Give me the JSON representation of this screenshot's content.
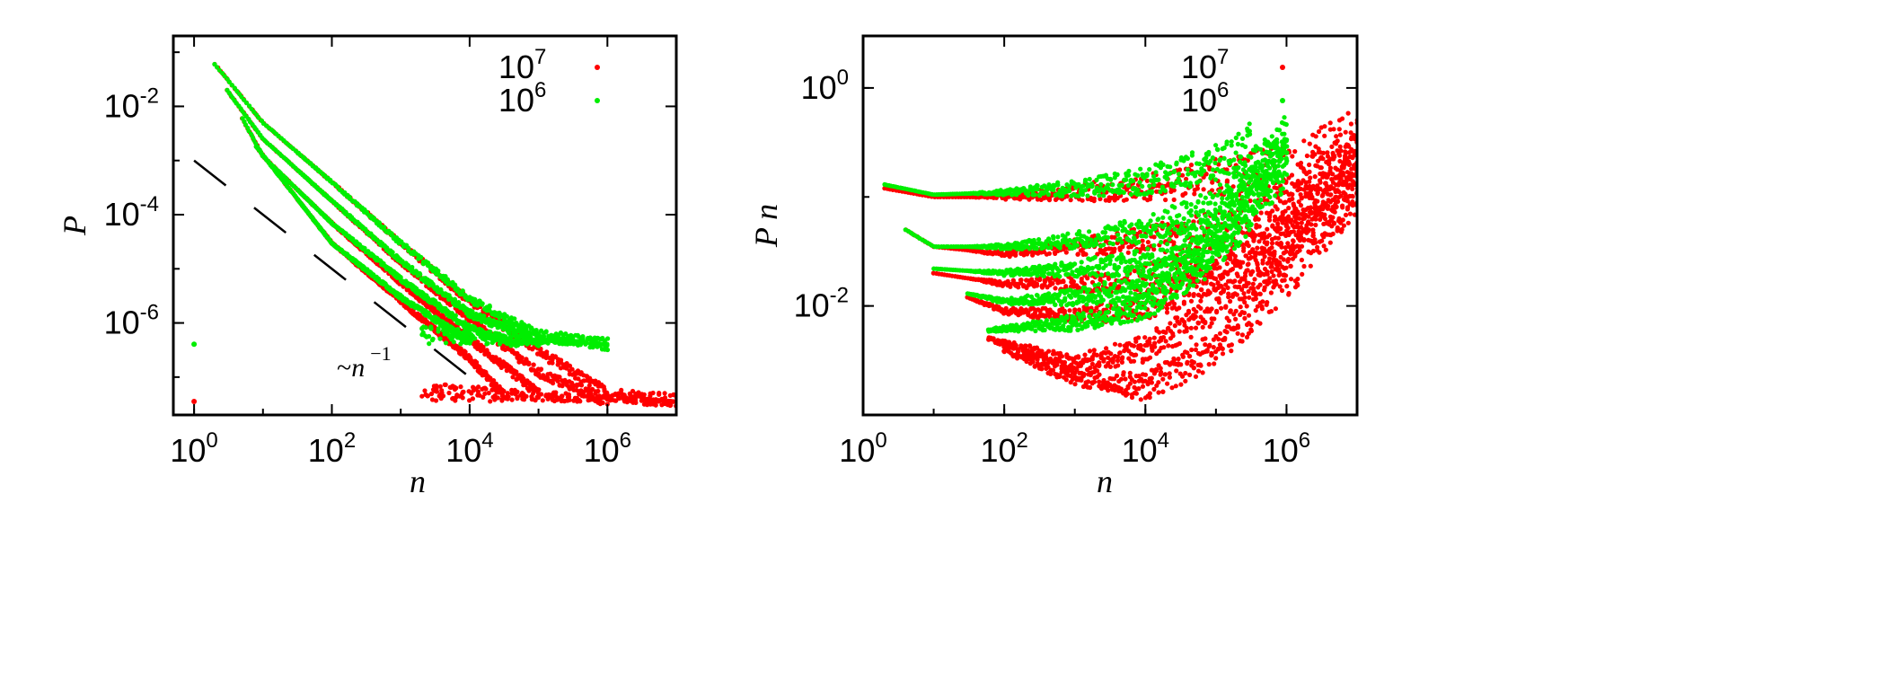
{
  "chart_data": [
    {
      "type": "scatter",
      "panel": "left",
      "title": "",
      "xlabel": "n",
      "ylabel": "P",
      "xscale": "log",
      "yscale": "log",
      "xlim": [
        0.5,
        10000000
      ],
      "ylim": [
        2e-08,
        0.2
      ],
      "xticks": [
        {
          "base": "10",
          "exp": "0",
          "value": 1
        },
        {
          "base": "10",
          "exp": "2",
          "value": 100
        },
        {
          "base": "10",
          "exp": "4",
          "value": 10000
        },
        {
          "base": "10",
          "exp": "6",
          "value": 1000000
        }
      ],
      "yticks": [
        {
          "base": "10",
          "exp": "-2",
          "value": 0.01
        },
        {
          "base": "10",
          "exp": "-4",
          "value": 0.0001
        },
        {
          "base": "10",
          "exp": "-6",
          "value": 1e-06
        }
      ],
      "legend_position": "top-right",
      "series": [
        {
          "name": "10^7",
          "label_base": "10",
          "label_exp": "7",
          "color": "#ff0000",
          "n_max": 10000000,
          "floor": 3.55e-08,
          "isolated_points": [
            [
              1,
              3.55e-08
            ]
          ],
          "curves": [
            {
              "x": [
                2,
                10,
                100,
                1000,
                10000,
                100000,
                1000000,
                10000000
              ],
              "y": [
                0.06,
                0.005,
                0.0004,
                3e-05,
                2.5e-06,
                3e-07,
                5e-08,
                3.55e-08
              ]
            },
            {
              "x": [
                3,
                10,
                100,
                1000,
                10000,
                100000,
                1000000
              ],
              "y": [
                0.02,
                0.0025,
                0.00018,
                1.3e-05,
                1.2e-06,
                1.2e-07,
                3.6e-08
              ]
            },
            {
              "x": [
                5,
                10,
                100,
                1000,
                10000,
                100000
              ],
              "y": [
                0.006,
                0.0012,
                7e-05,
                5.5e-06,
                5e-07,
                5e-08
              ]
            },
            {
              "x": [
                8,
                100,
                1000,
                10000,
                30000
              ],
              "y": [
                0.0018,
                3e-05,
                2.5e-06,
                2.2e-07,
                5e-08
              ]
            }
          ]
        },
        {
          "name": "10^6",
          "label_base": "10",
          "label_exp": "6",
          "color": "#00ee00",
          "n_max": 1000000,
          "floor": 4.05e-07,
          "isolated_points": [
            [
              1,
              4.05e-07
            ]
          ],
          "curves": [
            {
              "x": [
                2,
                10,
                100,
                1000,
                10000,
                100000,
                1000000
              ],
              "y": [
                0.06,
                0.005,
                0.0004,
                3e-05,
                2.8e-06,
                6e-07,
                4.05e-07
              ]
            },
            {
              "x": [
                3,
                10,
                100,
                1000,
                10000,
                100000
              ],
              "y": [
                0.02,
                0.0025,
                0.00018,
                1.4e-05,
                1.5e-06,
                4.5e-07
              ]
            },
            {
              "x": [
                5,
                10,
                100,
                1000,
                10000,
                50000
              ],
              "y": [
                0.006,
                0.0012,
                7e-05,
                6.5e-06,
                8e-07,
                4.1e-07
              ]
            },
            {
              "x": [
                8,
                100,
                1000,
                10000
              ],
              "y": [
                0.0018,
                3e-05,
                3e-06,
                4.5e-07
              ]
            }
          ]
        }
      ],
      "reference_line": {
        "label_prefix": "~",
        "label_var": "n",
        "label_exp": "−1",
        "x": [
          1,
          20000
        ],
        "y": [
          0.001,
          5e-08
        ],
        "style": "dashed"
      }
    },
    {
      "type": "scatter",
      "panel": "right",
      "title": "",
      "xlabel": "n",
      "ylabel": "P n",
      "xscale": "log",
      "yscale": "log",
      "xlim": [
        1,
        10000000
      ],
      "ylim": [
        0.001,
        3
      ],
      "xticks": [
        {
          "base": "10",
          "exp": "0",
          "value": 1
        },
        {
          "base": "10",
          "exp": "2",
          "value": 100
        },
        {
          "base": "10",
          "exp": "4",
          "value": 10000
        },
        {
          "base": "10",
          "exp": "6",
          "value": 1000000
        }
      ],
      "yticks": [
        {
          "base": "10",
          "exp": "0",
          "value": 1
        },
        {
          "base": "10",
          "exp": "-2",
          "value": 0.01
        }
      ],
      "legend_position": "top-right",
      "series": [
        {
          "name": "10^7",
          "label_base": "10",
          "label_exp": "7",
          "color": "#ff0000",
          "n_max": 10000000,
          "curves": [
            {
              "x": [
                2,
                10,
                100,
                1000,
                10000,
                100000,
                1000000,
                10000000
              ],
              "y": [
                0.12,
                0.1,
                0.1,
                0.11,
                0.12,
                0.15,
                0.18,
                0.35
              ]
            },
            {
              "x": [
                4,
                10,
                100,
                1000,
                10000,
                100000,
                1000000,
                10000000
              ],
              "y": [
                0.05,
                0.035,
                0.03,
                0.035,
                0.04,
                0.05,
                0.09,
                0.3
              ]
            },
            {
              "x": [
                10,
                100,
                1000,
                10000,
                100000,
                1000000,
                10000000
              ],
              "y": [
                0.02,
                0.016,
                0.016,
                0.018,
                0.025,
                0.06,
                0.25
              ]
            },
            {
              "x": [
                30,
                100,
                1000,
                10000,
                100000,
                1000000,
                10000000
              ],
              "y": [
                0.012,
                0.009,
                0.008,
                0.01,
                0.018,
                0.04,
                0.2
              ]
            },
            {
              "x": [
                60,
                1000,
                10000,
                100000,
                1000000,
                10000000
              ],
              "y": [
                0.005,
                0.003,
                0.004,
                0.01,
                0.03,
                0.15
              ]
            },
            {
              "x": [
                100,
                1000,
                10000,
                100000,
                1000000,
                10000000
              ],
              "y": [
                0.004,
                0.0022,
                0.0018,
                0.004,
                0.02,
                0.12
              ]
            }
          ]
        },
        {
          "name": "10^6",
          "label_base": "10",
          "label_exp": "6",
          "color": "#00ee00",
          "n_max": 1000000,
          "curves": [
            {
              "x": [
                2,
                10,
                100,
                1000,
                10000,
                100000,
                300000
              ],
              "y": [
                0.13,
                0.105,
                0.11,
                0.12,
                0.14,
                0.2,
                0.3
              ]
            },
            {
              "x": [
                4,
                10,
                100,
                1000,
                10000,
                100000,
                1000000
              ],
              "y": [
                0.05,
                0.035,
                0.035,
                0.04,
                0.05,
                0.08,
                0.35
              ]
            },
            {
              "x": [
                10,
                100,
                1000,
                10000,
                100000,
                1000000
              ],
              "y": [
                0.022,
                0.02,
                0.022,
                0.025,
                0.05,
                0.3
              ]
            },
            {
              "x": [
                30,
                100,
                1000,
                10000,
                100000,
                1000000
              ],
              "y": [
                0.013,
                0.011,
                0.012,
                0.015,
                0.04,
                0.25
              ]
            },
            {
              "x": [
                60,
                1000,
                10000,
                100000,
                1000000
              ],
              "y": [
                0.006,
                0.007,
                0.01,
                0.03,
                0.2
              ]
            }
          ]
        }
      ]
    }
  ]
}
